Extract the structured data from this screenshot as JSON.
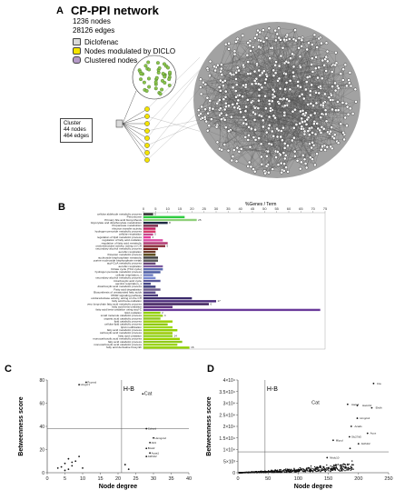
{
  "panelA": {
    "letter": "A",
    "title": "CP-PPI network",
    "stats": [
      "1236 nodes",
      "28126 edges"
    ],
    "legend": [
      {
        "label": "Diclofenac",
        "color": "#d9d9d9"
      },
      {
        "label": "Nodes modulated by DICLO",
        "color": "#f4e400"
      },
      {
        "label": "Clustered nodes",
        "color": "#b59ac8"
      }
    ],
    "cluster_label": [
      "Cluster",
      "44 nodes",
      "464 edges"
    ]
  },
  "panelB": {
    "letter": "B",
    "axis_title": "%Genes / Term",
    "ticks": [
      "0",
      "5",
      "10",
      "15",
      "20",
      "25",
      "30",
      "35",
      "40",
      "45",
      "50",
      "55",
      "60",
      "65",
      "70",
      "75"
    ],
    "chart_data": {
      "type": "bar",
      "orientation": "horizontal",
      "xlabel": "%Genes / Term",
      "xlim": [
        0,
        75
      ],
      "categories": [
        "cellular aldehyde metabolic process",
        "Peroxisome",
        "Primary bile acid biosynthesis",
        "Glyoxylate and dicarboxylate metabolism",
        "Propanoate metabolism",
        "electron transfer activity",
        "hydrogen peroxide metabolic process",
        "cellular respiration",
        "regulation of lipid metabolic process",
        "regulation of fatty acid oxidation",
        "regulation of fatty acid metabolic",
        "oxidoreductase activity, acting on CH",
        "secondary alcohol metabolic process",
        "aerobic respiration",
        "thioester metabolic process",
        "nucleoside bisphosphate metabolic",
        "purine nucleoside bisphosphate metab",
        "acyl-CoA metabolic process",
        "aerobic respiration",
        "Citrate cycle (TCA cycle)",
        "hydrogen peroxide metabolic process",
        "cellular respiration_1",
        "secondary alcohol metabolic process",
        "tricarboxylic acid cycle",
        "aerobic respiration_1",
        "dicarboxylic acid metabolic process",
        "Fatty acid degradation",
        "Biosynthesis of unsaturated fatty acids",
        "PPAR signaling pathway",
        "oxidoreductase activity, acting on the CH",
        "fatty acid beta-oxidation",
        "very long-chain fatty acid metabolic process",
        "fatty acid beta-oxidation",
        "fatty acid beta-oxidation using acyl-C",
        "lipid oxidation",
        "small molecule catabolic process",
        "organic acid catabolic process",
        "lipid catabolic process",
        "cellular lipid catabolic process",
        "lipid modification",
        "fatty acid metabolic process",
        "carboxylic acid metabolic process",
        "fatty acid oxidation",
        "monocarboxylic acid metabolic process",
        "fatty acid catabolic process",
        "monocarboxylic acid catabolic process",
        "fatty acid derivative biosynth"
      ],
      "values": [
        4,
        17,
        22,
        10,
        6,
        5,
        5,
        4,
        3,
        8,
        10,
        9,
        6,
        5,
        5,
        6,
        6,
        5,
        8,
        8,
        7,
        4,
        5,
        7,
        3,
        5,
        7,
        5,
        6,
        20,
        30,
        27,
        12,
        73,
        7,
        8,
        7,
        12,
        10,
        12,
        14,
        12,
        12,
        15,
        16,
        14,
        19
      ],
      "data_labels": [
        "5",
        "",
        "25",
        "8",
        "",
        "",
        "",
        "5",
        "4",
        "",
        "",
        "6",
        "",
        "",
        "",
        "",
        "",
        "",
        "",
        "",
        "",
        "",
        "",
        "",
        "",
        "",
        "",
        "",
        "",
        "",
        "17",
        "6",
        "",
        "",
        "2",
        "4",
        "",
        "",
        "",
        "",
        "",
        "",
        "14",
        "",
        "",
        "",
        "16"
      ],
      "colors": [
        "#2d2d2d",
        "#2ecc40",
        "#8fd07a",
        "#1f2a44",
        "#7a2a4a",
        "#c0185a",
        "#d63b6a",
        "#c54a8e",
        "#e6399b",
        "#d94ea4",
        "#b03570",
        "#8a2e3a",
        "#7a1f1f",
        "#6a3a2a",
        "#5a4a1a",
        "#3a3a3a",
        "#555555",
        "#6b4a7a",
        "#7b5aa0",
        "#5a6ab0",
        "#4a5aa0",
        "#6a7ac0",
        "#7a8ad0",
        "#5a5a9a",
        "#4a4a8a",
        "#3a3a7a",
        "#6a5a8a",
        "#5a4a8a",
        "#4a3a7a",
        "#3a2a6a",
        "#4a2a7a",
        "#3a1a5a",
        "#5a2a7a",
        "#6a3a9a",
        "#8fd000",
        "#9bd31a",
        "#8fc81a",
        "#9bd000",
        "#8fc800",
        "#9bd81a",
        "#8fcf00",
        "#9bc800",
        "#8fd31a",
        "#9bd000",
        "#8fc81a",
        "#9bd31a",
        "#8fd000"
      ]
    }
  },
  "panelC": {
    "letter": "C",
    "ylabel": "Betweenness score",
    "xlabel": "Node degree",
    "hb_label": "H-B",
    "ylabel_unused": "",
    "x_ticks": [
      "0",
      "5",
      "10",
      "15",
      "20",
      "25",
      "30",
      "35",
      "40"
    ],
    "y_ticks": [
      "0",
      "20",
      "40",
      "60",
      "80"
    ],
    "annotations": [
      {
        "label": "Hmgcr1"
      },
      {
        "label": "Pcyoxd"
      },
      {
        "label": "Cat"
      },
      {
        "label": "Cchcrd"
      },
      {
        "label": "Hsmgcs2"
      },
      {
        "label": "Ab3"
      },
      {
        "label": "Bcat2"
      },
      {
        "label": "Acaa1"
      },
      {
        "label": "Aldh1l2"
      }
    ],
    "chart_data": {
      "type": "scatter",
      "xlabel": "Node degree",
      "ylabel": "Betweenness score",
      "xlim": [
        0,
        40
      ],
      "ylim": [
        0,
        80
      ],
      "reference_lines": {
        "x": 21,
        "y": 38
      },
      "points": [
        {
          "x": 4,
          "y": 5
        },
        {
          "x": 5,
          "y": 8
        },
        {
          "x": 6,
          "y": 3
        },
        {
          "x": 6,
          "y": 12
        },
        {
          "x": 7,
          "y": 6
        },
        {
          "x": 8,
          "y": 10
        },
        {
          "x": 9,
          "y": 14
        },
        {
          "x": 3,
          "y": 4
        },
        {
          "x": 5,
          "y": 2
        },
        {
          "x": 7,
          "y": 9
        },
        {
          "x": 10,
          "y": 4
        },
        {
          "x": 22,
          "y": 7
        },
        {
          "x": 23,
          "y": 3
        },
        {
          "x": 9,
          "y": 76
        },
        {
          "x": 11,
          "y": 78
        },
        {
          "x": 27,
          "y": 68
        },
        {
          "x": 28,
          "y": 38
        },
        {
          "x": 30,
          "y": 30
        },
        {
          "x": 29,
          "y": 26
        },
        {
          "x": 28,
          "y": 21
        },
        {
          "x": 29,
          "y": 17
        },
        {
          "x": 28,
          "y": 14
        }
      ]
    }
  },
  "panelD": {
    "letter": "D",
    "ylabel": "Betweenness score",
    "xlabel": "Node degree",
    "hb_label": "H-B",
    "x_ticks": [
      "0",
      "50",
      "100",
      "150",
      "200",
      "250"
    ],
    "y_ticks": [
      "0",
      "5×10³",
      "1×10⁴",
      "1.5×10⁴",
      "2×10⁴",
      "2.5×10⁴",
      "3×10⁴",
      "3.5×10⁴",
      "4×10⁴"
    ],
    "annotations": [
      {
        "label": "Cat"
      },
      {
        "label": "Cta"
      },
      {
        "label": "Aacs2"
      },
      {
        "label": "Hacsh4"
      },
      {
        "label": "Ehdh"
      },
      {
        "label": "Hmgcs2"
      },
      {
        "label": "Acads"
      },
      {
        "label": "Acox"
      },
      {
        "label": "Slc27a5"
      },
      {
        "label": "Aldh1l2"
      },
      {
        "label": "Mlycd"
      },
      {
        "label": "Nbdc10"
      }
    ],
    "chart_data": {
      "type": "scatter",
      "xlabel": "Node degree",
      "ylabel": "Betweenness score",
      "xlim": [
        0,
        250
      ],
      "ylim": [
        0,
        40000
      ],
      "reference_lines": {
        "x": 45,
        "y": 9000
      },
      "highlighted_points": [
        {
          "x": 225,
          "y": 38500
        },
        {
          "x": 182,
          "y": 29500
        },
        {
          "x": 198,
          "y": 29000
        },
        {
          "x": 222,
          "y": 28000
        },
        {
          "x": 198,
          "y": 23500
        },
        {
          "x": 188,
          "y": 20000
        },
        {
          "x": 215,
          "y": 17000
        },
        {
          "x": 185,
          "y": 15500
        },
        {
          "x": 200,
          "y": 12500
        },
        {
          "x": 186,
          "y": 10500
        },
        {
          "x": 158,
          "y": 14000
        },
        {
          "x": 148,
          "y": 6500
        }
      ]
    }
  }
}
